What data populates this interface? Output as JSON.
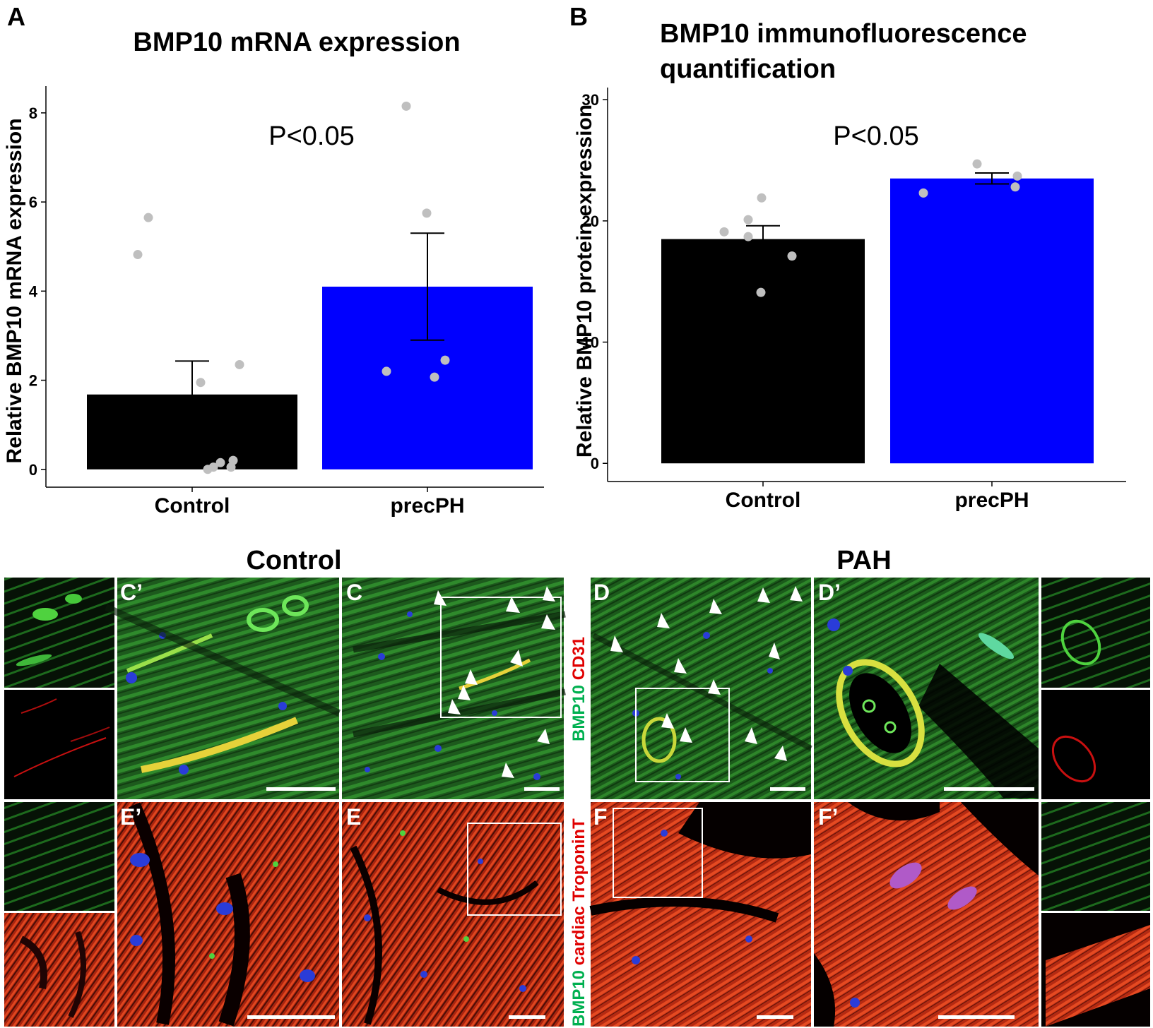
{
  "panel_letters": {
    "a": "A",
    "b": "B",
    "c_prime": "C’",
    "c": "C",
    "d": "D",
    "d_prime": "D’",
    "e_prime": "E’",
    "e": "E",
    "f": "F",
    "f_prime": "F’"
  },
  "group_titles": {
    "left": "Control",
    "right": "PAH"
  },
  "stain_labels": {
    "top": [
      {
        "text": "BMP10 ",
        "color": "#00b050"
      },
      {
        "text": "CD31",
        "color": "#e00000"
      }
    ],
    "bottom": [
      {
        "text": "BMP10 ",
        "color": "#00b050"
      },
      {
        "text": "cardiac TroponinT",
        "color": "#e00000"
      }
    ]
  },
  "colors": {
    "control_bar": "#000000",
    "precph_bar": "#0000ff",
    "points": "#bfbfbf",
    "bmp10_green": "#1f7a1f",
    "cd31_red": "#d01010",
    "troponin_red": "#d23a1c",
    "dapi_blue": "#2a3cd8"
  },
  "chart_data": [
    {
      "type": "bar",
      "title": "BMP10 mRNA expression",
      "ylabel": "Relative BMP10 mRNA expression",
      "xlabel": "",
      "categories": [
        "Control",
        "precPH"
      ],
      "values": [
        1.68,
        4.1
      ],
      "error": [
        0.75,
        1.2
      ],
      "points": [
        [
          5.65,
          4.82,
          2.35,
          1.95,
          0.2,
          0.15,
          0.05,
          0.05,
          0.0
        ],
        [
          8.15,
          5.75,
          2.45,
          2.2,
          2.07
        ]
      ],
      "yticks": [
        0,
        2,
        4,
        6,
        8
      ],
      "ylim": [
        -0.4,
        8.6
      ],
      "annotation": "P<0.05",
      "grid": false
    },
    {
      "type": "bar",
      "title": "BMP10 immunofluorescence quantification",
      "ylabel": "Relative BMP10 protein expression",
      "xlabel": "",
      "categories": [
        "Control",
        "precPH"
      ],
      "values": [
        18.5,
        23.5
      ],
      "error": [
        1.1,
        0.45
      ],
      "points": [
        [
          21.9,
          20.1,
          19.1,
          18.7,
          17.1,
          14.1
        ],
        [
          24.7,
          23.7,
          22.8,
          22.3
        ]
      ],
      "yticks": [
        0,
        10,
        20,
        30
      ],
      "ylim": [
        -1.5,
        31
      ],
      "annotation": "P<0.05",
      "grid": false
    }
  ]
}
